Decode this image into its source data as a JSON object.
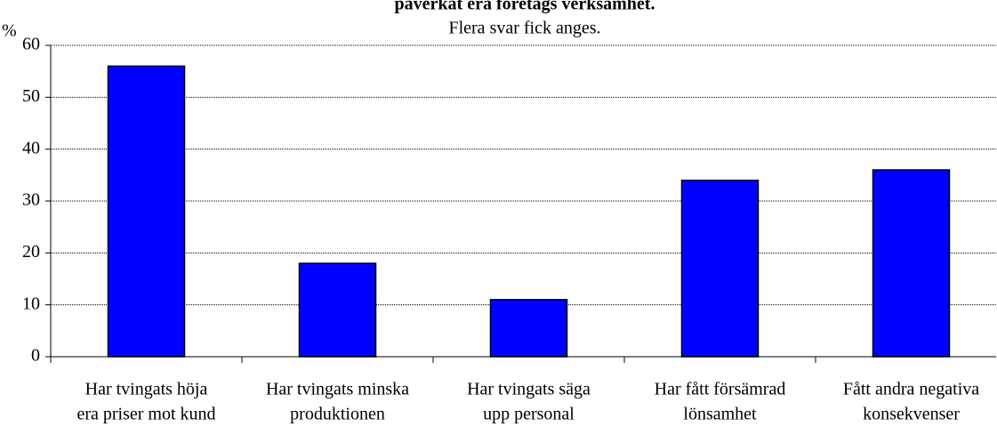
{
  "chart_data": {
    "type": "bar",
    "title": "påverkat era företags verksamhet.",
    "subtitle": "Flera svar fick anges.",
    "y_label": "%",
    "categories": [
      [
        "Har tvingats höja",
        "era priser mot kund"
      ],
      [
        "Har tvingats minska",
        "produktionen"
      ],
      [
        "Har tvingats säga",
        "upp personal"
      ],
      [
        "Har fått försämrad",
        "lönsamhet"
      ],
      [
        "Fått andra negativa",
        "konsekvenser"
      ]
    ],
    "values": [
      56,
      18,
      11,
      34,
      36
    ],
    "color": "#0000ff",
    "ylim": [
      0,
      60
    ],
    "yticks": [
      0,
      10,
      20,
      30,
      40,
      50,
      60
    ],
    "grid": true
  }
}
